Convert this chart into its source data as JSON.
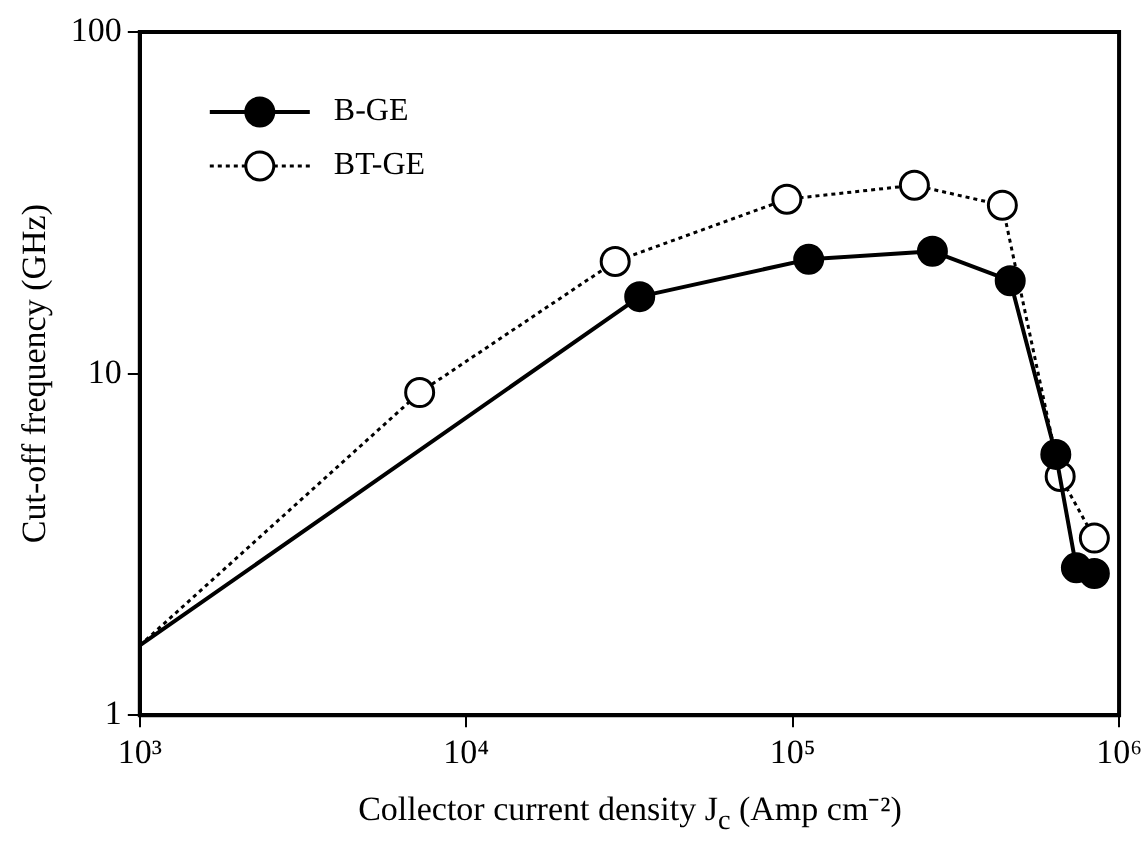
{
  "chart_data": {
    "type": "line",
    "xlabel": "Collector current density J$_{c}$ (Amp cm⁻²)",
    "ylabel": "Cut-off frequency (GHz)",
    "log": "xy",
    "xlim": [
      1000,
      1000000
    ],
    "ylim": [
      1,
      100
    ],
    "xticks": [
      {
        "value": 1000,
        "label": "10³"
      },
      {
        "value": 10000,
        "label": "10⁴"
      },
      {
        "value": 100000,
        "label": "10⁵"
      },
      {
        "value": 1000000,
        "label": "10⁶"
      }
    ],
    "yticks": [
      1,
      10,
      100
    ],
    "grid": false,
    "legend": "top left",
    "marker": "circle",
    "series": [
      {
        "name": "B-GE",
        "color": "#000000",
        "line_style": "solid",
        "x": [
          1000,
          34000,
          112000,
          268000,
          464000,
          640000,
          740000,
          840000
        ],
        "values": [
          1.6,
          16.8,
          21.6,
          22.8,
          18.7,
          5.8,
          2.7,
          2.6
        ]
      },
      {
        "name": "BT-GE",
        "color": "#000000",
        "line_style": "dotted",
        "x": [
          1000,
          7200,
          28600,
          96000,
          236000,
          439000,
          660000,
          840000
        ],
        "values": [
          1.6,
          8.8,
          21.3,
          32.4,
          35.6,
          31.1,
          5.0,
          3.3
        ]
      }
    ]
  }
}
